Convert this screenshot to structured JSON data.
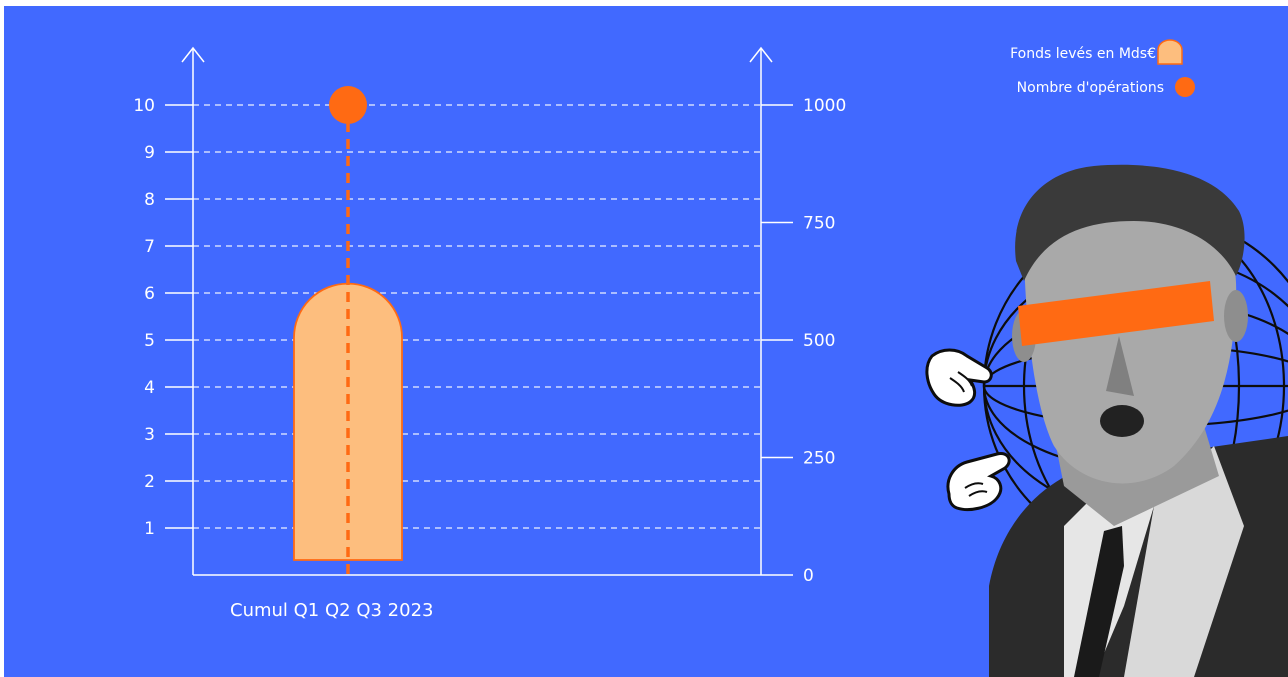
{
  "chart_data": {
    "type": "bar",
    "categories": [
      "Cumul Q1 Q2 Q3 2023"
    ],
    "series": [
      {
        "name": "Fonds levés en Mds€",
        "axis": "left",
        "values": [
          6.2
        ],
        "color": "#FDBE7E"
      },
      {
        "name": "Nombre d'opérations",
        "axis": "right",
        "values": [
          1000
        ],
        "color": "#FF6A13"
      }
    ],
    "left_axis": {
      "ticks": [
        1,
        2,
        3,
        4,
        5,
        6,
        7,
        8,
        9,
        10
      ],
      "ylim": [
        0,
        10
      ]
    },
    "right_axis": {
      "ticks": [
        0,
        250,
        500,
        750,
        1000
      ],
      "ylim": [
        0,
        1000
      ]
    },
    "grid": true,
    "legend": "top-right"
  },
  "colors": {
    "background": "#4169FF",
    "axis": "#ffffff",
    "bar_fill": "#FDBE7E",
    "accent": "#FF6A13"
  },
  "illustration": {
    "subject": "vintage-man-photo-with-orange-eye-bar",
    "elements": [
      "wireframe-globe",
      "pointing-hand-icon",
      "pointing-hand-icon"
    ]
  }
}
